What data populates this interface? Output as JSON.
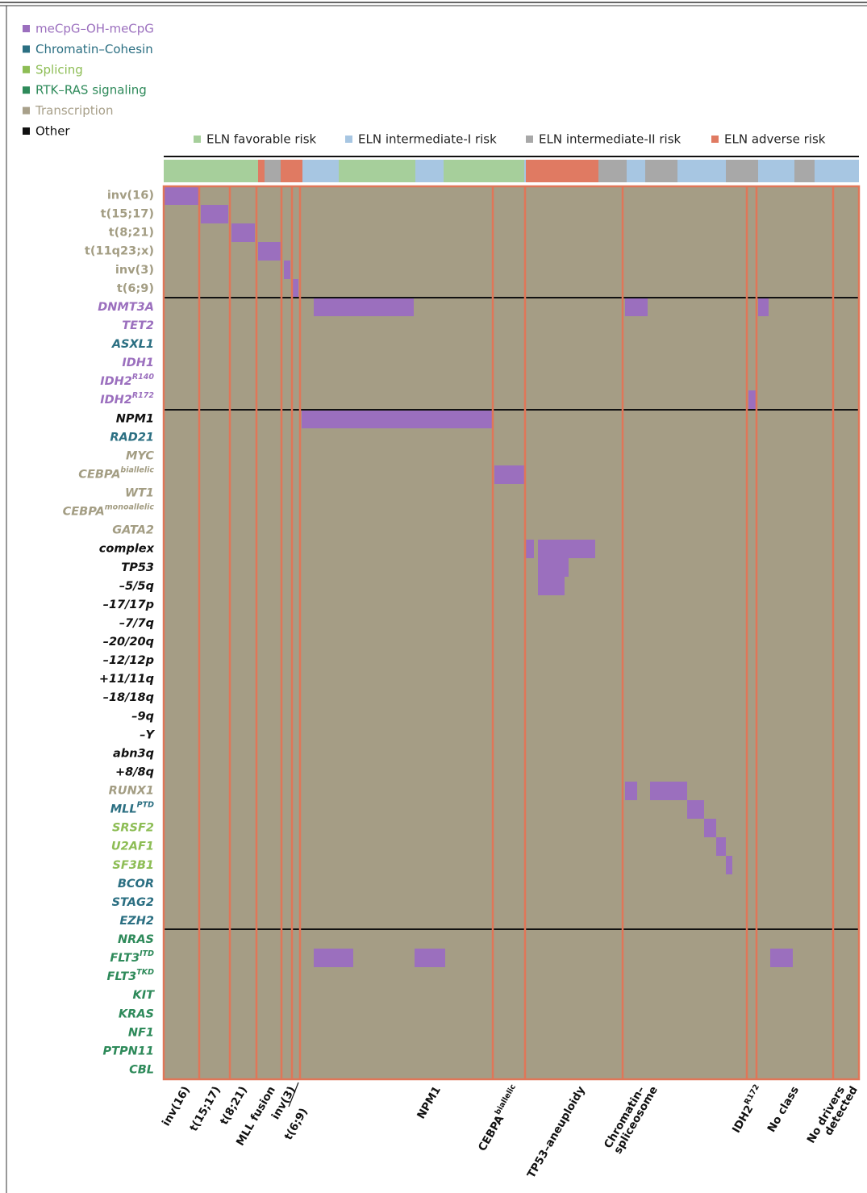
{
  "legend": [
    {
      "label": "meCpG–OH-meCpG",
      "color": "#9b6fbe"
    },
    {
      "label": "Chromatin–Cohesin",
      "color": "#2b6f82"
    },
    {
      "label": "Splicing",
      "color": "#8dbd55"
    },
    {
      "label": "RTK–RAS signaling",
      "color": "#2e8a5a"
    },
    {
      "label": "Transcription",
      "color": "#a8a08a"
    },
    {
      "label": "Other",
      "color": "#111111"
    }
  ],
  "risk_legend": [
    {
      "label": "ELN favorable risk",
      "color": "#a6cf9b"
    },
    {
      "label": "ELN intermediate-I risk",
      "color": "#a7c6e2"
    },
    {
      "label": "ELN intermediate-II risk",
      "color": "#a8a8a8"
    },
    {
      "label": "ELN adverse risk",
      "color": "#e07a62"
    }
  ],
  "rows": [
    {
      "label": "inv(16)",
      "color": "#a39d83",
      "italic": false
    },
    {
      "label": "t(15;17)",
      "color": "#a39d83",
      "italic": false
    },
    {
      "label": "t(8;21)",
      "color": "#a39d83",
      "italic": false
    },
    {
      "label": "t(11q23;x)",
      "color": "#a39d83",
      "italic": false
    },
    {
      "label": "inv(3)",
      "color": "#a39d83",
      "italic": false
    },
    {
      "label": "t(6;9)",
      "color": "#a39d83",
      "italic": false
    },
    {
      "label": "DNMT3A",
      "color": "#9b6fbe",
      "italic": true
    },
    {
      "label": "TET2",
      "color": "#9b6fbe",
      "italic": true
    },
    {
      "label": "ASXL1",
      "color": "#2b6f82",
      "italic": true
    },
    {
      "label": "IDH1",
      "color": "#9b6fbe",
      "italic": true
    },
    {
      "label": "IDH2",
      "sup": "R140",
      "color": "#9b6fbe",
      "italic": true
    },
    {
      "label": "IDH2",
      "sup": "R172",
      "color": "#9b6fbe",
      "italic": true
    },
    {
      "label": "NPM1",
      "color": "#111111",
      "italic": true
    },
    {
      "label": "RAD21",
      "color": "#2b6f82",
      "italic": true
    },
    {
      "label": "MYC",
      "color": "#a39d83",
      "italic": true
    },
    {
      "label": "CEBPA",
      "sup": "biallelic",
      "color": "#a39d83",
      "italic": true
    },
    {
      "label": "WT1",
      "color": "#a39d83",
      "italic": true
    },
    {
      "label": "CEBPA",
      "sup": "monoallelic",
      "color": "#a39d83",
      "italic": true
    },
    {
      "label": "GATA2",
      "color": "#a39d83",
      "italic": true
    },
    {
      "label": "complex",
      "color": "#111111",
      "italic": true
    },
    {
      "label": "TP53",
      "color": "#111111",
      "italic": true
    },
    {
      "label": "–5/5q",
      "color": "#111111",
      "italic": true
    },
    {
      "label": "–17/17p",
      "color": "#111111",
      "italic": true
    },
    {
      "label": "–7/7q",
      "color": "#111111",
      "italic": true
    },
    {
      "label": "–20/20q",
      "color": "#111111",
      "italic": true
    },
    {
      "label": "–12/12p",
      "color": "#111111",
      "italic": true
    },
    {
      "label": "+11/11q",
      "color": "#111111",
      "italic": true
    },
    {
      "label": "–18/18q",
      "color": "#111111",
      "italic": true
    },
    {
      "label": "–9q",
      "color": "#111111",
      "italic": true
    },
    {
      "label": "–Y",
      "color": "#111111",
      "italic": true
    },
    {
      "label": "abn3q",
      "color": "#111111",
      "italic": true
    },
    {
      "label": "+8/8q",
      "color": "#111111",
      "italic": true
    },
    {
      "label": "RUNX1",
      "color": "#a39d83",
      "italic": true
    },
    {
      "label": "MLL",
      "sup": "PTD",
      "color": "#2b6f82",
      "italic": true
    },
    {
      "label": "SRSF2",
      "color": "#8dbd55",
      "italic": true
    },
    {
      "label": "U2AF1",
      "color": "#8dbd55",
      "italic": true
    },
    {
      "label": "SF3B1",
      "color": "#8dbd55",
      "italic": true
    },
    {
      "label": "BCOR",
      "color": "#2b6f82",
      "italic": true
    },
    {
      "label": "STAG2",
      "color": "#2b6f82",
      "italic": true
    },
    {
      "label": "EZH2",
      "color": "#2b6f82",
      "italic": true
    },
    {
      "label": "NRAS",
      "color": "#2e8a5a",
      "italic": true
    },
    {
      "label": "FLT3",
      "sup": "ITD",
      "color": "#2e8a5a",
      "italic": true
    },
    {
      "label": "FLT3",
      "sup": "TKD",
      "color": "#2e8a5a",
      "italic": true
    },
    {
      "label": "KIT",
      "color": "#2e8a5a",
      "italic": true
    },
    {
      "label": "KRAS",
      "color": "#2e8a5a",
      "italic": true
    },
    {
      "label": "NF1",
      "color": "#2e8a5a",
      "italic": true
    },
    {
      "label": "PTPN11",
      "color": "#2e8a5a",
      "italic": true
    },
    {
      "label": "CBL",
      "color": "#2e8a5a",
      "italic": true
    }
  ],
  "classes": [
    {
      "label": "inv(16)"
    },
    {
      "label": "t(15;17)"
    },
    {
      "label": "t(8;21)"
    },
    {
      "label": "MLL fusion"
    },
    {
      "label": "inv(3)"
    },
    {
      "label": "t(6;9)"
    },
    {
      "label": "NPM1"
    },
    {
      "label": "CEBPA",
      "sup": "biallelic"
    },
    {
      "label": "TP53–aneuploidy"
    },
    {
      "label": "Chromatin–"
    },
    {
      "label": "spliceosome"
    },
    {
      "label": "IDH2",
      "sup": "R172"
    },
    {
      "label": "No class"
    },
    {
      "label": "No drivers"
    },
    {
      "label": "detected"
    }
  ]
}
